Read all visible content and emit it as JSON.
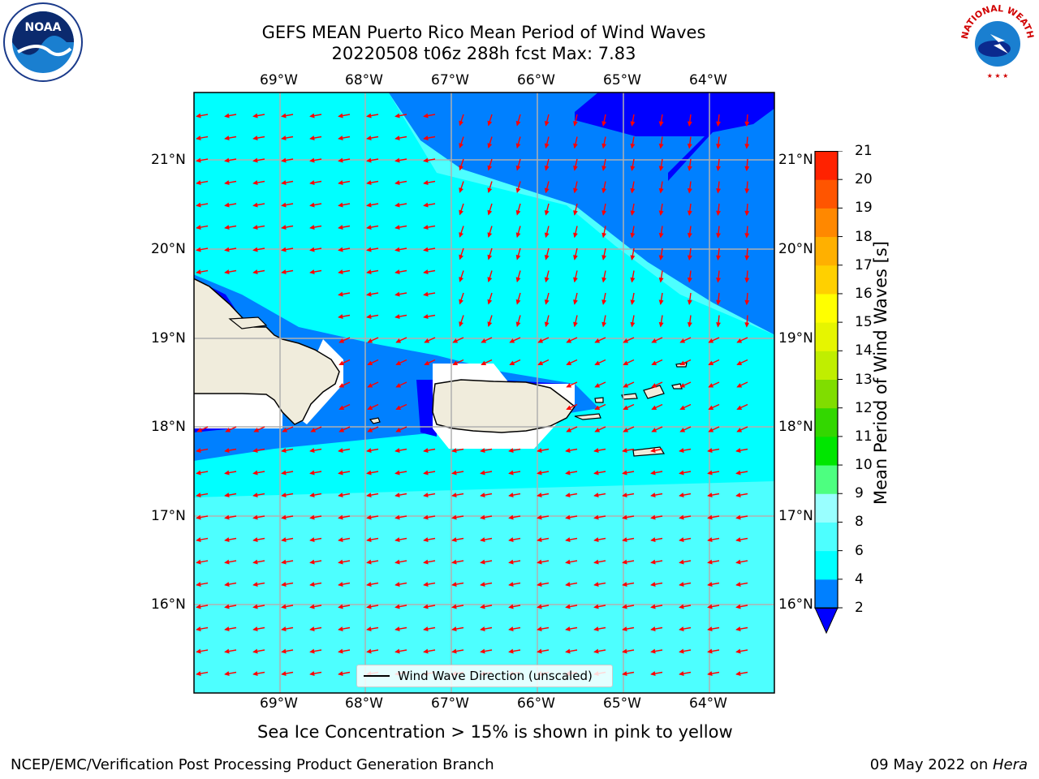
{
  "title": {
    "line1": "GEFS MEAN Puerto Rico Mean Period of Wind Waves",
    "line2": "20220508 t06z 288h fcst   Max: 7.83"
  },
  "map": {
    "longitude_labels": [
      "69°W",
      "68°W",
      "67°W",
      "66°W",
      "65°W",
      "64°W"
    ],
    "latitude_labels": [
      "21°N",
      "20°N",
      "19°N",
      "18°N",
      "17°N",
      "16°N"
    ],
    "legend_label": "Wind Wave Direction (unscaled)",
    "colors": {
      "ocean_light": "#00ffff",
      "ocean_mid": "#4dffff",
      "ocean_dark": "#0080ff",
      "ocean_darkest": "#0000ff",
      "land": "#f0ecdc",
      "arrow": "#ff0000",
      "grid": "#b0b0b0"
    }
  },
  "colorbar": {
    "label": "Mean Period of Wind Waves [s]",
    "ticks": [
      "2",
      "4",
      "6",
      "8",
      "9",
      "10",
      "11",
      "12",
      "13",
      "14",
      "15",
      "16",
      "17",
      "18",
      "19",
      "20",
      "21"
    ],
    "colors": [
      "#0080ff",
      "#00ffff",
      "#4dffff",
      "#99ffff",
      "#4dff80",
      "#00e600",
      "#33d700",
      "#80dd00",
      "#c0ee00",
      "#e6f500",
      "#ffff00",
      "#ffd000",
      "#ffb000",
      "#ff8800",
      "#ff5500",
      "#ff2200"
    ],
    "under_color": "#0000ff"
  },
  "subtitle": "Sea Ice Concentration > 15% is shown in pink to yellow",
  "footer": {
    "left": "NCEP/EMC/Verification Post Processing Product Generation Branch",
    "right_date": "09 May 2022 on ",
    "right_machine": "Hera"
  },
  "logos": {
    "left": "NOAA",
    "right": "NATIONAL WEATHER SERVICE"
  }
}
